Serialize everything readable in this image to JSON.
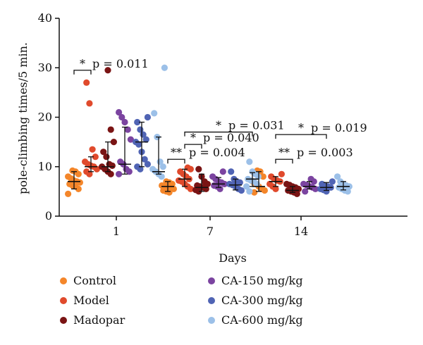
{
  "chart_data": {
    "type": "scatter",
    "xlabel": "Days",
    "ylabel": "pole-climbing times/5 min.",
    "ylim": [
      0,
      40
    ],
    "yticks": [
      "0",
      "10",
      "20",
      "30",
      "40"
    ],
    "groups": [
      "1",
      "7",
      "14"
    ],
    "series": [
      {
        "name": "Control",
        "color": "#f4862a",
        "points": [
          [
            4.5,
            5.5,
            6.0,
            6.2,
            6.5,
            6.8,
            7.0,
            7.2,
            7.6,
            8.0,
            8.5,
            9.0,
            9.2
          ],
          [
            4.8,
            5.0,
            5.2,
            5.5,
            5.8,
            6.0,
            6.0,
            6.2,
            6.5,
            6.8,
            7.0
          ],
          [
            4.8,
            5.2,
            5.5,
            6.0,
            6.5,
            7.0,
            8.0,
            9.0,
            9.2
          ]
        ],
        "median": [
          7.0,
          6.0,
          6.0
        ],
        "lo": [
          5.5,
          5.0,
          5.0
        ],
        "hi": [
          9.0,
          7.0,
          9.0
        ]
      },
      {
        "name": "Model",
        "color": "#e04a2c",
        "points": [
          [
            8.5,
            9.0,
            9.5,
            10.0,
            10.2,
            10.5,
            11.0,
            12.0,
            13.5,
            22.8,
            27.0
          ],
          [
            5.5,
            6.0,
            6.5,
            7.0,
            7.2,
            7.5,
            8.0,
            8.5,
            9.0,
            9.5,
            9.8
          ],
          [
            5.5,
            6.0,
            6.5,
            7.0,
            7.2,
            7.5,
            8.0,
            8.5
          ]
        ],
        "median": [
          10.0,
          7.5,
          7.0
        ],
        "lo": [
          9.0,
          6.0,
          6.0
        ],
        "hi": [
          12.0,
          9.5,
          8.0
        ]
      },
      {
        "name": "Madopar",
        "color": "#7a1414",
        "points": [
          [
            8.5,
            9.0,
            9.5,
            10.0,
            10.2,
            10.5,
            12.0,
            13.0,
            15.0,
            17.5,
            29.5
          ],
          [
            5.0,
            5.3,
            5.5,
            5.8,
            6.0,
            6.2,
            6.5,
            7.0,
            8.0,
            9.5
          ],
          [
            4.5,
            4.8,
            5.0,
            5.2,
            5.5,
            5.8,
            6.0,
            6.3,
            6.5
          ]
        ],
        "median": [
          10.0,
          5.8,
          5.2
        ],
        "lo": [
          9.0,
          5.0,
          4.8
        ],
        "hi": [
          15.0,
          8.5,
          6.0
        ]
      },
      {
        "name": "CA-150 mg/kg",
        "color": "#7b44a0",
        "points": [
          [
            8.5,
            9.0,
            9.5,
            10.5,
            11.0,
            15.5,
            17.5,
            19.0,
            20.0,
            21.0
          ],
          [
            5.5,
            6.0,
            6.2,
            6.5,
            6.8,
            7.0,
            7.5,
            8.0,
            9.0
          ],
          [
            5.0,
            5.5,
            5.8,
            6.0,
            6.3,
            6.5,
            7.0,
            7.5
          ]
        ],
        "median": [
          10.5,
          6.5,
          6.0
        ],
        "lo": [
          8.5,
          5.8,
          5.5
        ],
        "hi": [
          18.0,
          7.8,
          7.0
        ]
      },
      {
        "name": "CA-300 mg/kg",
        "color": "#5064b4",
        "points": [
          [
            9.5,
            10.0,
            10.5,
            11.5,
            13.0,
            14.5,
            15.0,
            15.5,
            16.5,
            17.5,
            19.0,
            20.0
          ],
          [
            5.2,
            5.5,
            6.0,
            6.3,
            6.5,
            6.8,
            7.0,
            7.5,
            9.0
          ],
          [
            5.0,
            5.3,
            5.5,
            5.8,
            6.0,
            6.2,
            6.5,
            7.0
          ]
        ],
        "median": [
          15.0,
          6.3,
          5.8
        ],
        "lo": [
          10.0,
          5.3,
          5.2
        ],
        "hi": [
          19.0,
          7.5,
          6.8
        ]
      },
      {
        "name": "CA-600 mg/kg",
        "color": "#9cc0e8",
        "points": [
          [
            8.0,
            8.5,
            9.0,
            9.5,
            10.0,
            11.0,
            16.0,
            20.8,
            30.0
          ],
          [
            5.0,
            6.0,
            6.5,
            7.0,
            7.2,
            7.5,
            8.0,
            8.5,
            9.0,
            11.0
          ],
          [
            5.0,
            5.2,
            5.5,
            5.8,
            6.0,
            6.2,
            6.5,
            7.0,
            8.0
          ]
        ],
        "median": [
          9.0,
          7.5,
          6.0
        ],
        "lo": [
          8.5,
          6.0,
          5.3
        ],
        "hi": [
          16.0,
          8.8,
          7.0
        ]
      }
    ],
    "annotations": [
      {
        "group": 0,
        "from": 0,
        "to": 1,
        "y": 29.5,
        "stars": "*",
        "text": "p = 0.011"
      },
      {
        "group": 1,
        "from": 0,
        "to": 1,
        "y": 11.5,
        "stars": "**",
        "text": "p = 0.004"
      },
      {
        "group": 1,
        "from": 1,
        "to": 2,
        "y": 14.5,
        "stars": "*",
        "text": "p = 0.040"
      },
      {
        "group": 1,
        "from": 1,
        "to": 5,
        "y": 17.0,
        "stars": "*",
        "text": "p = 0.031"
      },
      {
        "group": 2,
        "from": 1,
        "to": 2,
        "y": 11.5,
        "stars": "**",
        "text": "p = 0.003"
      },
      {
        "group": 2,
        "from": 1,
        "to": 4,
        "y": 16.5,
        "stars": "*",
        "text": "p = 0.019"
      }
    ],
    "legend_position": "bottom"
  }
}
